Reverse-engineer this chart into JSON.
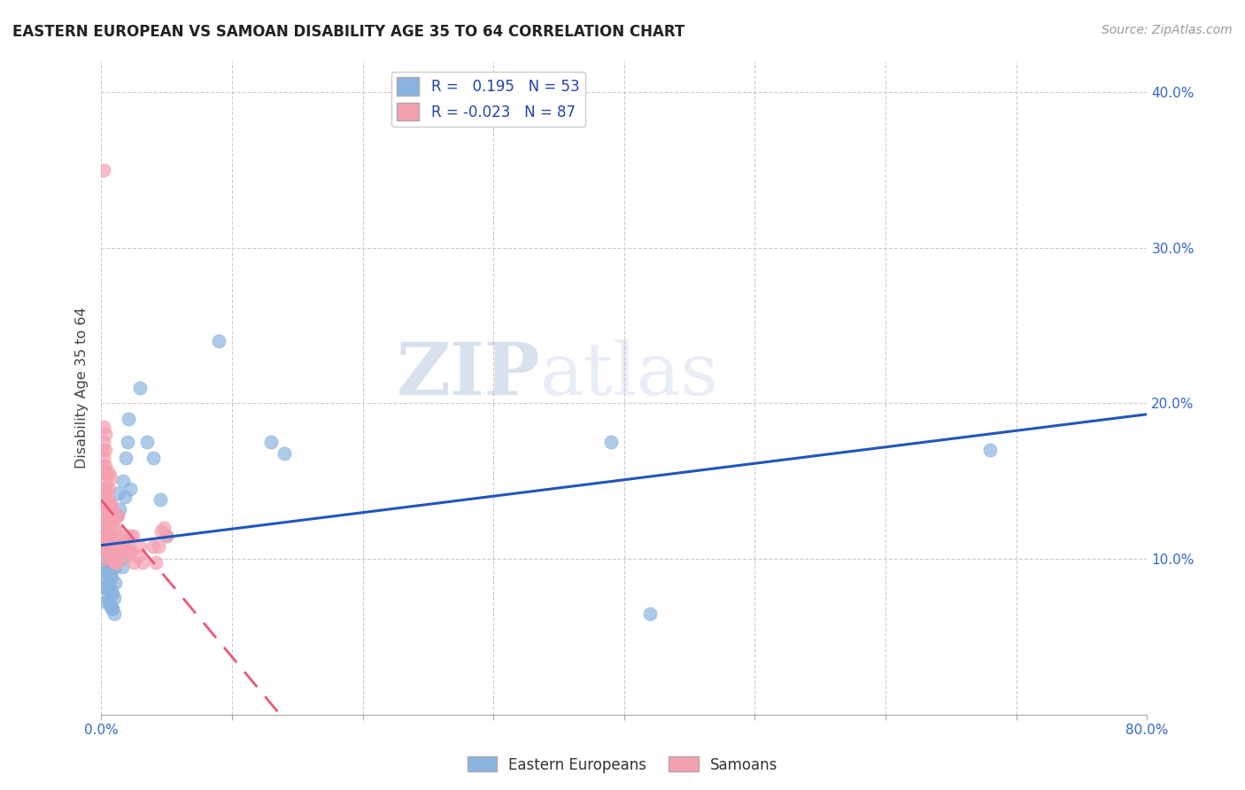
{
  "title": "EASTERN EUROPEAN VS SAMOAN DISABILITY AGE 35 TO 64 CORRELATION CHART",
  "source": "Source: ZipAtlas.com",
  "ylabel": "Disability Age 35 to 64",
  "xlim": [
    0.0,
    0.8
  ],
  "ylim": [
    0.0,
    0.42
  ],
  "xticks": [
    0.0,
    0.1,
    0.2,
    0.3,
    0.4,
    0.5,
    0.6,
    0.7,
    0.8
  ],
  "xtick_labels": [
    "0.0%",
    "",
    "",
    "",
    "",
    "",
    "",
    "",
    "80.0%"
  ],
  "yticks_right": [
    0.1,
    0.2,
    0.3,
    0.4
  ],
  "background_color": "#ffffff",
  "grid_color": "#cccccc",
  "legend_R_blue": "0.195",
  "legend_N_blue": "53",
  "legend_R_pink": "-0.023",
  "legend_N_pink": "87",
  "blue_color": "#8ab4e0",
  "pink_color": "#f4a0b0",
  "line_blue": "#2255bb",
  "line_pink": "#ee5577",
  "watermark_zip": "ZIP",
  "watermark_atlas": "atlas",
  "legend_items": [
    "Eastern Europeans",
    "Samoans"
  ],
  "eu_x": [
    0.001,
    0.001,
    0.002,
    0.002,
    0.002,
    0.003,
    0.003,
    0.003,
    0.003,
    0.004,
    0.004,
    0.004,
    0.005,
    0.005,
    0.005,
    0.006,
    0.006,
    0.006,
    0.007,
    0.007,
    0.007,
    0.008,
    0.008,
    0.008,
    0.009,
    0.009,
    0.01,
    0.01,
    0.011,
    0.011,
    0.012,
    0.012,
    0.013,
    0.014,
    0.015,
    0.016,
    0.017,
    0.018,
    0.019,
    0.02,
    0.021,
    0.022,
    0.03,
    0.035,
    0.04,
    0.045,
    0.05,
    0.09,
    0.13,
    0.14,
    0.39,
    0.42,
    0.68
  ],
  "eu_y": [
    0.095,
    0.082,
    0.092,
    0.1,
    0.11,
    0.082,
    0.09,
    0.1,
    0.11,
    0.072,
    0.082,
    0.094,
    0.075,
    0.085,
    0.095,
    0.072,
    0.082,
    0.092,
    0.07,
    0.08,
    0.09,
    0.068,
    0.078,
    0.088,
    0.068,
    0.078,
    0.065,
    0.075,
    0.085,
    0.095,
    0.112,
    0.128,
    0.142,
    0.132,
    0.1,
    0.095,
    0.15,
    0.14,
    0.165,
    0.175,
    0.19,
    0.145,
    0.21,
    0.175,
    0.165,
    0.138,
    0.115,
    0.24,
    0.175,
    0.168,
    0.175,
    0.065,
    0.17
  ],
  "sa_x": [
    0.001,
    0.001,
    0.001,
    0.001,
    0.001,
    0.001,
    0.001,
    0.002,
    0.002,
    0.002,
    0.002,
    0.002,
    0.002,
    0.002,
    0.002,
    0.002,
    0.002,
    0.002,
    0.003,
    0.003,
    0.003,
    0.003,
    0.003,
    0.003,
    0.003,
    0.003,
    0.003,
    0.004,
    0.004,
    0.004,
    0.004,
    0.004,
    0.005,
    0.005,
    0.005,
    0.005,
    0.006,
    0.006,
    0.006,
    0.006,
    0.006,
    0.006,
    0.007,
    0.007,
    0.007,
    0.007,
    0.007,
    0.008,
    0.008,
    0.008,
    0.008,
    0.009,
    0.009,
    0.009,
    0.01,
    0.01,
    0.01,
    0.011,
    0.011,
    0.011,
    0.011,
    0.012,
    0.012,
    0.013,
    0.013,
    0.013,
    0.014,
    0.015,
    0.016,
    0.017,
    0.018,
    0.019,
    0.02,
    0.021,
    0.022,
    0.023,
    0.024,
    0.025,
    0.028,
    0.03,
    0.032,
    0.04,
    0.042,
    0.044,
    0.046,
    0.048,
    0.05
  ],
  "sa_y": [
    0.12,
    0.13,
    0.14,
    0.145,
    0.155,
    0.16,
    0.17,
    0.1,
    0.108,
    0.115,
    0.125,
    0.135,
    0.145,
    0.155,
    0.165,
    0.175,
    0.185,
    0.35,
    0.105,
    0.115,
    0.12,
    0.13,
    0.14,
    0.15,
    0.16,
    0.17,
    0.18,
    0.108,
    0.12,
    0.13,
    0.145,
    0.155,
    0.105,
    0.115,
    0.125,
    0.138,
    0.105,
    0.112,
    0.125,
    0.135,
    0.145,
    0.155,
    0.105,
    0.115,
    0.125,
    0.135,
    0.152,
    0.105,
    0.115,
    0.125,
    0.135,
    0.1,
    0.112,
    0.125,
    0.098,
    0.11,
    0.125,
    0.098,
    0.11,
    0.118,
    0.128,
    0.098,
    0.112,
    0.105,
    0.118,
    0.128,
    0.11,
    0.112,
    0.105,
    0.108,
    0.112,
    0.102,
    0.108,
    0.105,
    0.115,
    0.105,
    0.115,
    0.098,
    0.102,
    0.108,
    0.098,
    0.108,
    0.098,
    0.108,
    0.118,
    0.12,
    0.115
  ]
}
